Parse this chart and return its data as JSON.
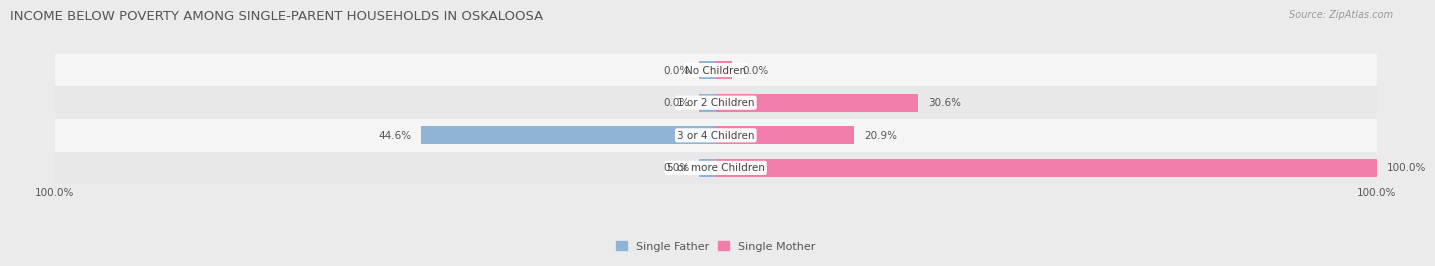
{
  "title": "INCOME BELOW POVERTY AMONG SINGLE-PARENT HOUSEHOLDS IN OSKALOOSA",
  "source": "Source: ZipAtlas.com",
  "categories": [
    "No Children",
    "1 or 2 Children",
    "3 or 4 Children",
    "5 or more Children"
  ],
  "single_father": [
    0.0,
    0.0,
    44.6,
    0.0
  ],
  "single_mother": [
    0.0,
    30.6,
    20.9,
    100.0
  ],
  "father_color": "#92b4d4",
  "mother_color": "#f07daa",
  "bar_height": 0.55,
  "xlim": [
    -100,
    100
  ],
  "x_tick_labels": [
    "100.0%",
    "100.0%"
  ],
  "bg_color": "#ebebeb",
  "row_colors": [
    "#f5f5f5",
    "#e8e8e8"
  ],
  "bar_bg_color": "#ffffff",
  "title_fontsize": 9.5,
  "source_fontsize": 7,
  "label_fontsize": 7.5,
  "category_fontsize": 7.5,
  "legend_fontsize": 8
}
